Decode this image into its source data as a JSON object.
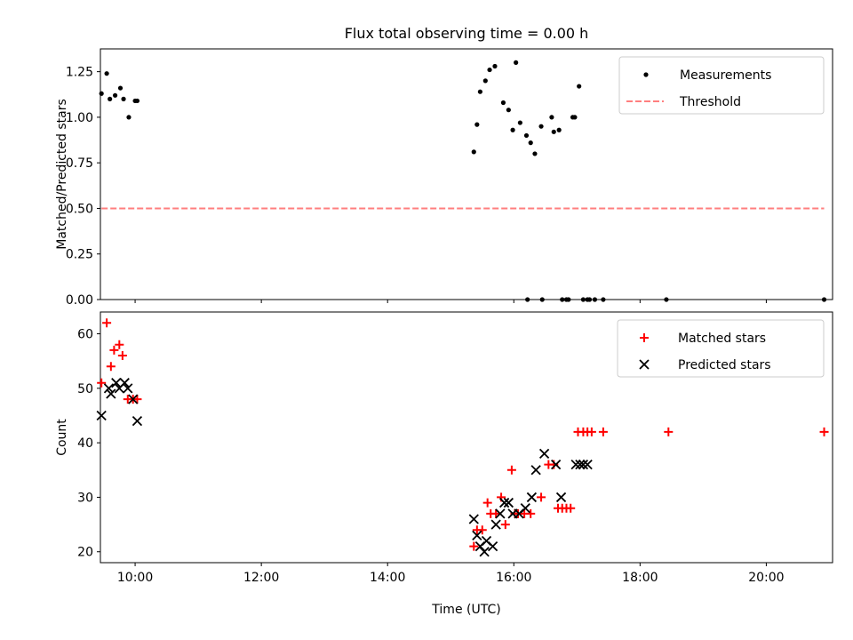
{
  "figure": {
    "title": "Flux total observing time = 0.00 h"
  },
  "chart_data": [
    {
      "type": "scatter",
      "ylabel": "Matched/Predicted stars",
      "xlabel": "",
      "xlim": [
        "09:27",
        "21:03"
      ],
      "ylim": [
        0,
        1.375
      ],
      "yticks": [
        0.0,
        0.25,
        0.5,
        0.75,
        1.0,
        1.25
      ],
      "ytick_labels": [
        "0.00",
        "0.25",
        "0.50",
        "0.75",
        "1.00",
        "1.25"
      ],
      "xticks": [
        "10:00",
        "12:00",
        "14:00",
        "16:00",
        "18:00",
        "20:00"
      ],
      "show_xtick_labels": false,
      "grid": false,
      "legend": "top-right",
      "series": [
        {
          "name": "Measurements",
          "kind": "points",
          "color": "#000000",
          "x": [
            "09:28",
            "09:33",
            "09:36",
            "09:41",
            "09:46",
            "09:49",
            "09:54",
            "10:00",
            "10:02",
            "15:22",
            "15:25",
            "15:28",
            "15:33",
            "15:37",
            "15:42",
            "15:50",
            "15:55",
            "15:59",
            "16:02",
            "16:06",
            "16:12",
            "16:16",
            "16:20",
            "16:26",
            "16:36",
            "16:38",
            "16:43",
            "16:56",
            "16:58",
            "17:02",
            "16:13",
            "16:27",
            "16:46",
            "16:50",
            "16:52",
            "17:06",
            "17:10",
            "17:12",
            "17:17",
            "17:25",
            "18:25",
            "20:55"
          ],
          "y": [
            1.13,
            1.24,
            1.1,
            1.12,
            1.16,
            1.1,
            1.0,
            1.09,
            1.09,
            0.81,
            0.96,
            1.14,
            1.2,
            1.26,
            1.28,
            1.08,
            1.04,
            0.93,
            1.3,
            0.97,
            0.9,
            0.86,
            0.8,
            0.95,
            1.0,
            0.92,
            0.93,
            1.0,
            1.0,
            1.17,
            0.0,
            0.0,
            0.0,
            0.0,
            0.0,
            0.0,
            0.0,
            0.0,
            0.0,
            0.0,
            0.0,
            0.0
          ]
        },
        {
          "name": "Threshold",
          "kind": "dashed-line",
          "color": "#ff7f7f",
          "x": [
            "09:28",
            "20:55"
          ],
          "y": [
            0.5,
            0.5
          ]
        }
      ]
    },
    {
      "type": "scatter",
      "xlabel": "Time (UTC)",
      "ylabel": "Count",
      "xlim": [
        "09:27",
        "21:03"
      ],
      "ylim": [
        18,
        64
      ],
      "yticks": [
        20,
        30,
        40,
        50,
        60
      ],
      "ytick_labels": [
        "20",
        "30",
        "40",
        "50",
        "60"
      ],
      "xticks": [
        "10:00",
        "12:00",
        "14:00",
        "16:00",
        "18:00",
        "20:00"
      ],
      "xtick_labels": [
        "10:00",
        "12:00",
        "14:00",
        "16:00",
        "18:00",
        "20:00"
      ],
      "grid": false,
      "legend": "top-right",
      "series": [
        {
          "name": "Matched stars",
          "marker": "+",
          "color": "#ff0000",
          "x": [
            "09:28",
            "09:33",
            "09:37",
            "09:40",
            "09:45",
            "09:48",
            "09:53",
            "09:58",
            "10:02",
            "15:22",
            "15:25",
            "15:30",
            "15:35",
            "15:38",
            "15:43",
            "15:48",
            "15:52",
            "15:58",
            "16:01",
            "16:04",
            "16:10",
            "16:16",
            "16:26",
            "16:33",
            "16:38",
            "16:42",
            "16:46",
            "16:50",
            "16:54",
            "17:01",
            "17:06",
            "17:10",
            "17:14",
            "17:25",
            "18:27",
            "20:55"
          ],
          "y": [
            51,
            62,
            54,
            57,
            58,
            56,
            48,
            48,
            48,
            21,
            24,
            24,
            29,
            27,
            27,
            30,
            25,
            35,
            27,
            27,
            27,
            27,
            30,
            36,
            36,
            28,
            28,
            28,
            28,
            42,
            42,
            42,
            42,
            42,
            42,
            42
          ]
        },
        {
          "name": "Predicted stars",
          "marker": "x",
          "color": "#000000",
          "x": [
            "09:28",
            "09:35",
            "09:37",
            "09:42",
            "09:45",
            "09:50",
            "09:53",
            "09:58",
            "10:02",
            "15:22",
            "15:25",
            "15:28",
            "15:32",
            "15:34",
            "15:40",
            "15:43",
            "15:47",
            "15:51",
            "15:55",
            "15:59",
            "16:05",
            "16:11",
            "16:17",
            "16:21",
            "16:29",
            "16:40",
            "16:45",
            "16:59",
            "17:03",
            "17:06",
            "17:10"
          ],
          "y": [
            45,
            50,
            49,
            51,
            50,
            51,
            50,
            48,
            44,
            26,
            23,
            21,
            20,
            22,
            21,
            25,
            27,
            29,
            29,
            27,
            27,
            28,
            30,
            35,
            38,
            36,
            30,
            36,
            36,
            36,
            36
          ]
        }
      ]
    }
  ]
}
